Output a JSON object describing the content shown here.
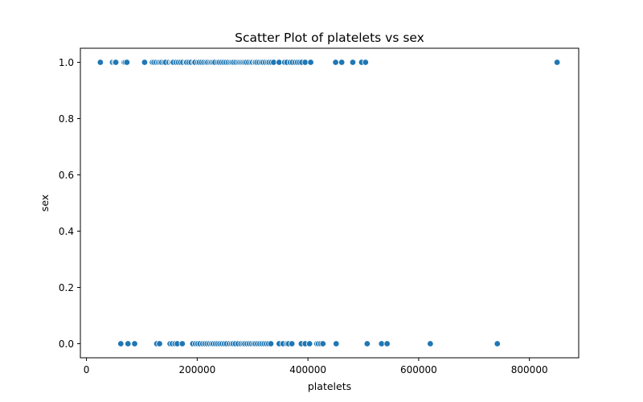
{
  "chart_data": {
    "type": "scatter",
    "title": "Scatter Plot of platelets vs sex",
    "xlabel": "platelets",
    "ylabel": "sex",
    "xlim": [
      -11000,
      889000
    ],
    "ylim": [
      -0.05,
      1.05
    ],
    "xticks": [
      0,
      200000,
      400000,
      600000,
      800000
    ],
    "xtick_labels": [
      "0",
      "200000",
      "400000",
      "600000",
      "800000"
    ],
    "yticks": [
      0.0,
      0.2,
      0.4,
      0.6,
      0.8,
      1.0
    ],
    "ytick_labels": [
      "0.0",
      "0.2",
      "0.4",
      "0.6",
      "0.8",
      "1.0"
    ],
    "grid": false,
    "legend": false,
    "marker_color": "#1f77b4",
    "series": [
      {
        "x": [
          25100,
          47000,
          51000,
          53000,
          68000,
          70000,
          73000,
          105000,
          119000,
          122000,
          126000,
          130000,
          133000,
          136000,
          140000,
          143000,
          149000,
          153000,
          155000,
          157000,
          162000,
          166000,
          170000,
          174000,
          179000,
          181000,
          185000,
          189000,
          194000,
          196000,
          201000,
          204000,
          208000,
          212000,
          216000,
          219000,
          223000,
          226000,
          229000,
          232000,
          237000,
          240000,
          244000,
          248000,
          252000,
          256000,
          260000,
          263000,
          266000,
          270000,
          274000,
          277000,
          280000,
          283000,
          286000,
          289000,
          293000,
          297000,
          300000,
          304000,
          305000,
          308000,
          312000,
          316000,
          319000,
          323000,
          327000,
          330000,
          334000,
          338000,
          348000,
          358000,
          362000,
          368000,
          372000,
          377000,
          381000,
          385000,
          389000,
          395000,
          405000,
          450000,
          461000,
          481000,
          497000,
          504000,
          850000
        ],
        "y": [
          1,
          1,
          1,
          1,
          1,
          1,
          1,
          1,
          1,
          1,
          1,
          1,
          1,
          1,
          1,
          1,
          1,
          1,
          1,
          1,
          1,
          1,
          1,
          1,
          1,
          1,
          1,
          1,
          1,
          1,
          1,
          1,
          1,
          1,
          1,
          1,
          1,
          1,
          1,
          1,
          1,
          1,
          1,
          1,
          1,
          1,
          1,
          1,
          1,
          1,
          1,
          1,
          1,
          1,
          1,
          1,
          1,
          1,
          1,
          1,
          1,
          1,
          1,
          1,
          1,
          1,
          1,
          1,
          1,
          1,
          1,
          1,
          1,
          1,
          1,
          1,
          1,
          1,
          1,
          1,
          1,
          1,
          1,
          1,
          1,
          1,
          1
        ]
      },
      {
        "x": [
          62000,
          75000,
          87000,
          127000,
          132000,
          151000,
          155000,
          160000,
          164000,
          173000,
          192000,
          197000,
          201000,
          205000,
          210000,
          214000,
          218000,
          222000,
          226000,
          229000,
          233000,
          237000,
          241000,
          245000,
          249000,
          253000,
          258000,
          262000,
          265000,
          269000,
          274000,
          279000,
          283000,
          286000,
          290000,
          294000,
          298000,
          302000,
          305000,
          309000,
          313000,
          317000,
          321000,
          325000,
          329000,
          333000,
          348000,
          355000,
          362000,
          365000,
          371000,
          388000,
          395000,
          403000,
          416000,
          419000,
          423000,
          427000,
          451000,
          507000,
          533000,
          543000,
          621000,
          742000
        ],
        "y": [
          0,
          0,
          0,
          0,
          0,
          0,
          0,
          0,
          0,
          0,
          0,
          0,
          0,
          0,
          0,
          0,
          0,
          0,
          0,
          0,
          0,
          0,
          0,
          0,
          0,
          0,
          0,
          0,
          0,
          0,
          0,
          0,
          0,
          0,
          0,
          0,
          0,
          0,
          0,
          0,
          0,
          0,
          0,
          0,
          0,
          0,
          0,
          0,
          0,
          0,
          0,
          0,
          0,
          0,
          0,
          0,
          0,
          0,
          0,
          0,
          0,
          0,
          0,
          0
        ]
      }
    ]
  }
}
